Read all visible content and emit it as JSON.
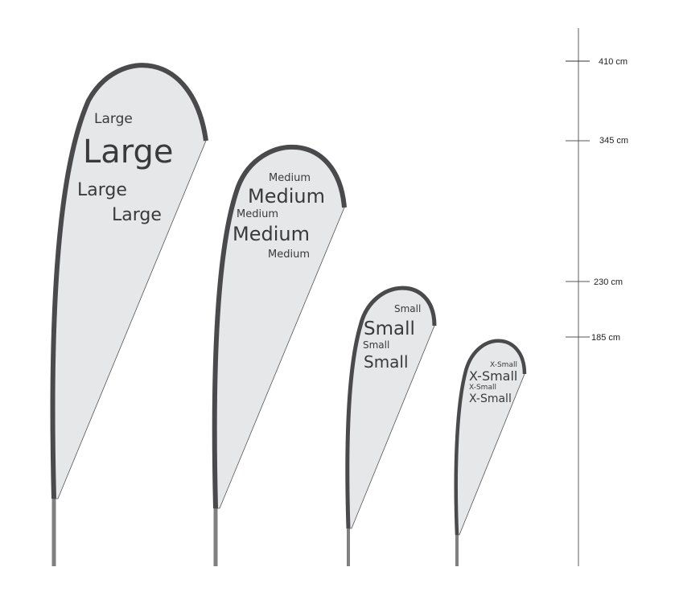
{
  "flags": [
    {
      "name": "large",
      "labels": [
        "Large",
        "Large",
        "Large",
        "Large"
      ]
    },
    {
      "name": "medium",
      "labels": [
        "Medium",
        "Medium",
        "Medium",
        "Medium",
        "Medium"
      ]
    },
    {
      "name": "small",
      "labels": [
        "Small",
        "Small",
        "Small",
        "Small"
      ]
    },
    {
      "name": "x-small",
      "labels": [
        "X-Small",
        "X-Small",
        "X-Small",
        "X-Small"
      ]
    }
  ],
  "scale": {
    "ticks": [
      {
        "label": "410 cm"
      },
      {
        "label": "345 cm"
      },
      {
        "label": "230 cm"
      },
      {
        "label": "185 cm"
      }
    ]
  },
  "colors": {
    "flag_fill": "#e6e7e8",
    "frame": "#4a4a4c",
    "pole": "#808080"
  }
}
